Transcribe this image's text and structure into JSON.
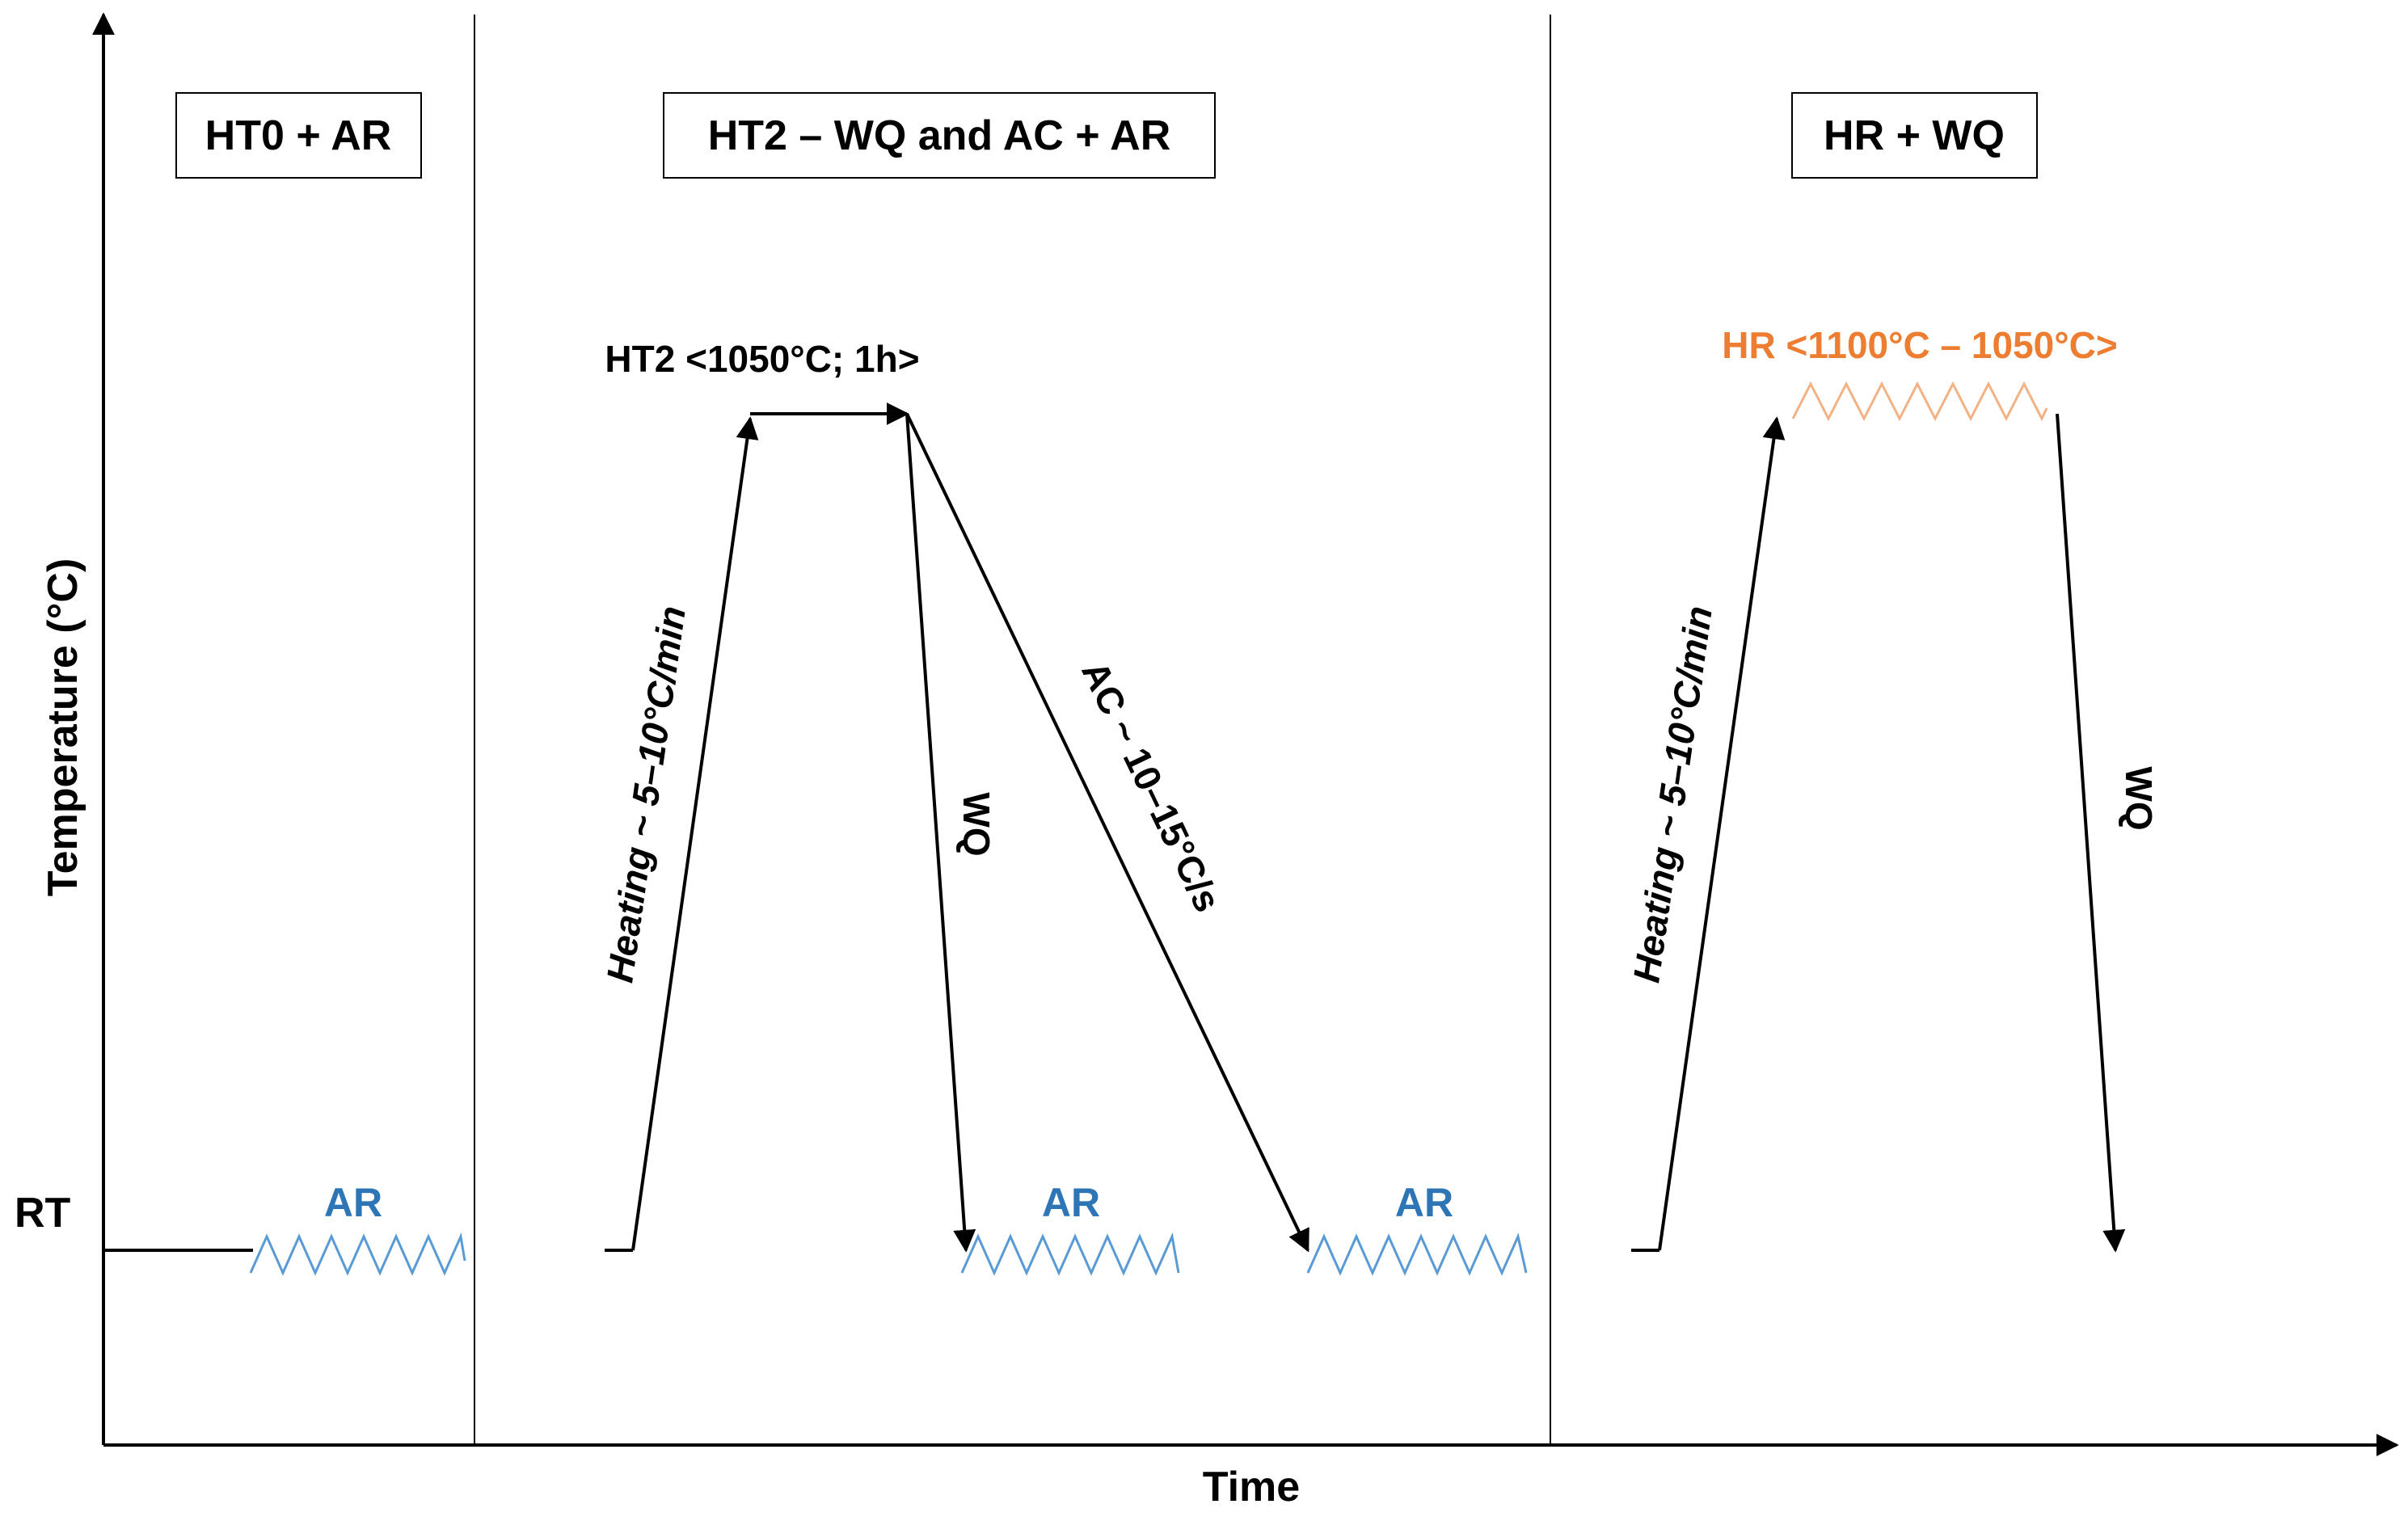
{
  "axes": {
    "y_label": "Temperature (°C)",
    "x_label": "Time",
    "rt_label": "RT"
  },
  "panels": {
    "p1_title": "HT0 + AR",
    "p2_title": "HT2 – WQ and AC + AR",
    "p3_title": "HR + WQ"
  },
  "labels": {
    "ht2_hold": "HT2 <1050°C; 1h>",
    "heating_1": "Heating ~ 5–10°C/min",
    "wq_1": "WQ",
    "ac": "AC ~ 10–15°C/s",
    "ar_1": "AR",
    "ar_2": "AR",
    "ar_3": "AR",
    "hr": "HR <1100°C – 1050°C>",
    "heating_2": "Heating ~ 5–10°C/min",
    "wq_2": "WQ"
  },
  "colors": {
    "ar_blue": "#2E75B6",
    "ar_zigzag": "#5B9BD5",
    "hr_orange": "#ED7D31",
    "hr_zigzag": "#F4B183",
    "line": "#000000"
  }
}
